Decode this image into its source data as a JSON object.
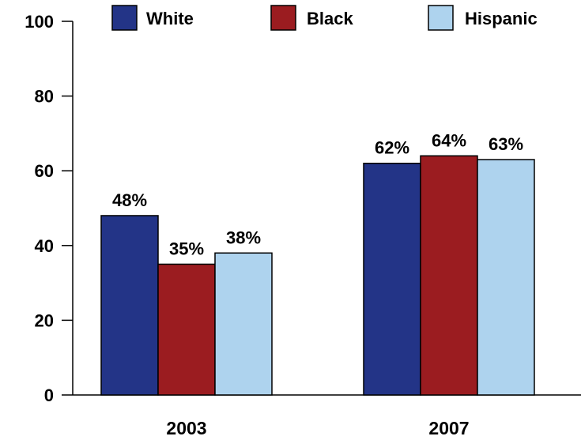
{
  "chart_data": {
    "type": "bar",
    "categories": [
      "2003",
      "2007"
    ],
    "series": [
      {
        "name": "White",
        "color": "#233487",
        "values": [
          48,
          62
        ],
        "labels": [
          "48%",
          "62%"
        ]
      },
      {
        "name": "Black",
        "color": "#9b1c20",
        "values": [
          35,
          64
        ],
        "labels": [
          "35%",
          "64%"
        ]
      },
      {
        "name": "Hispanic",
        "color": "#aed3ee",
        "values": [
          38,
          63
        ],
        "labels": [
          "38%",
          "63%"
        ]
      }
    ],
    "ylim": [
      0,
      100
    ],
    "yticks": [
      0,
      20,
      40,
      60,
      80,
      100
    ],
    "grid": false,
    "legend_position": "top"
  }
}
